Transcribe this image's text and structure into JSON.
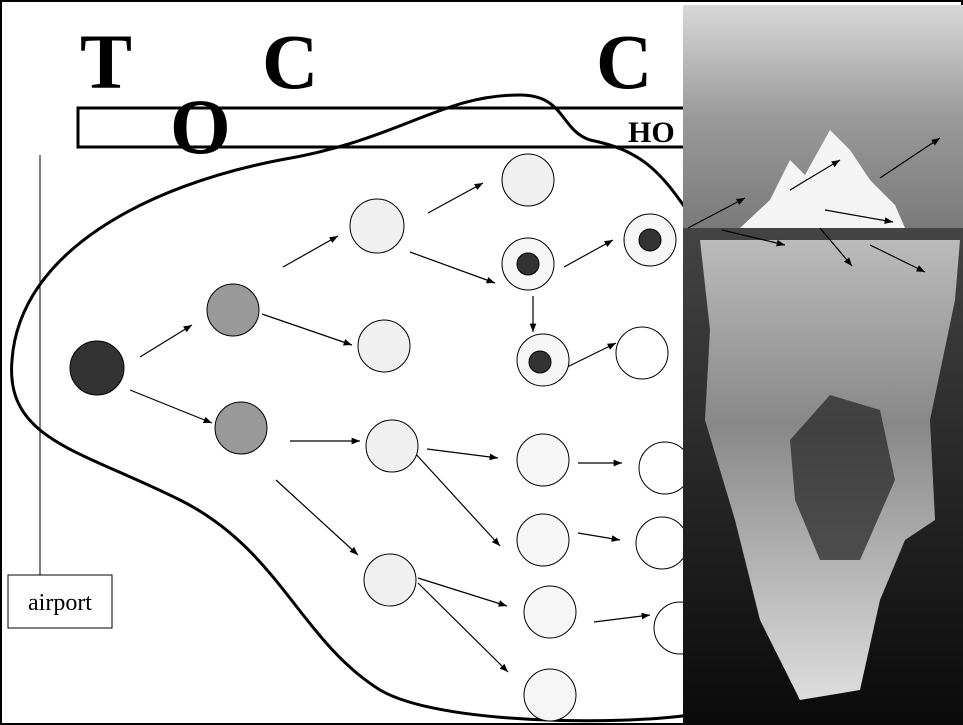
{
  "heading": {
    "letters": [
      "T",
      "C",
      "C",
      "O"
    ],
    "bar_text": "HO"
  },
  "side_label": "airport"
}
